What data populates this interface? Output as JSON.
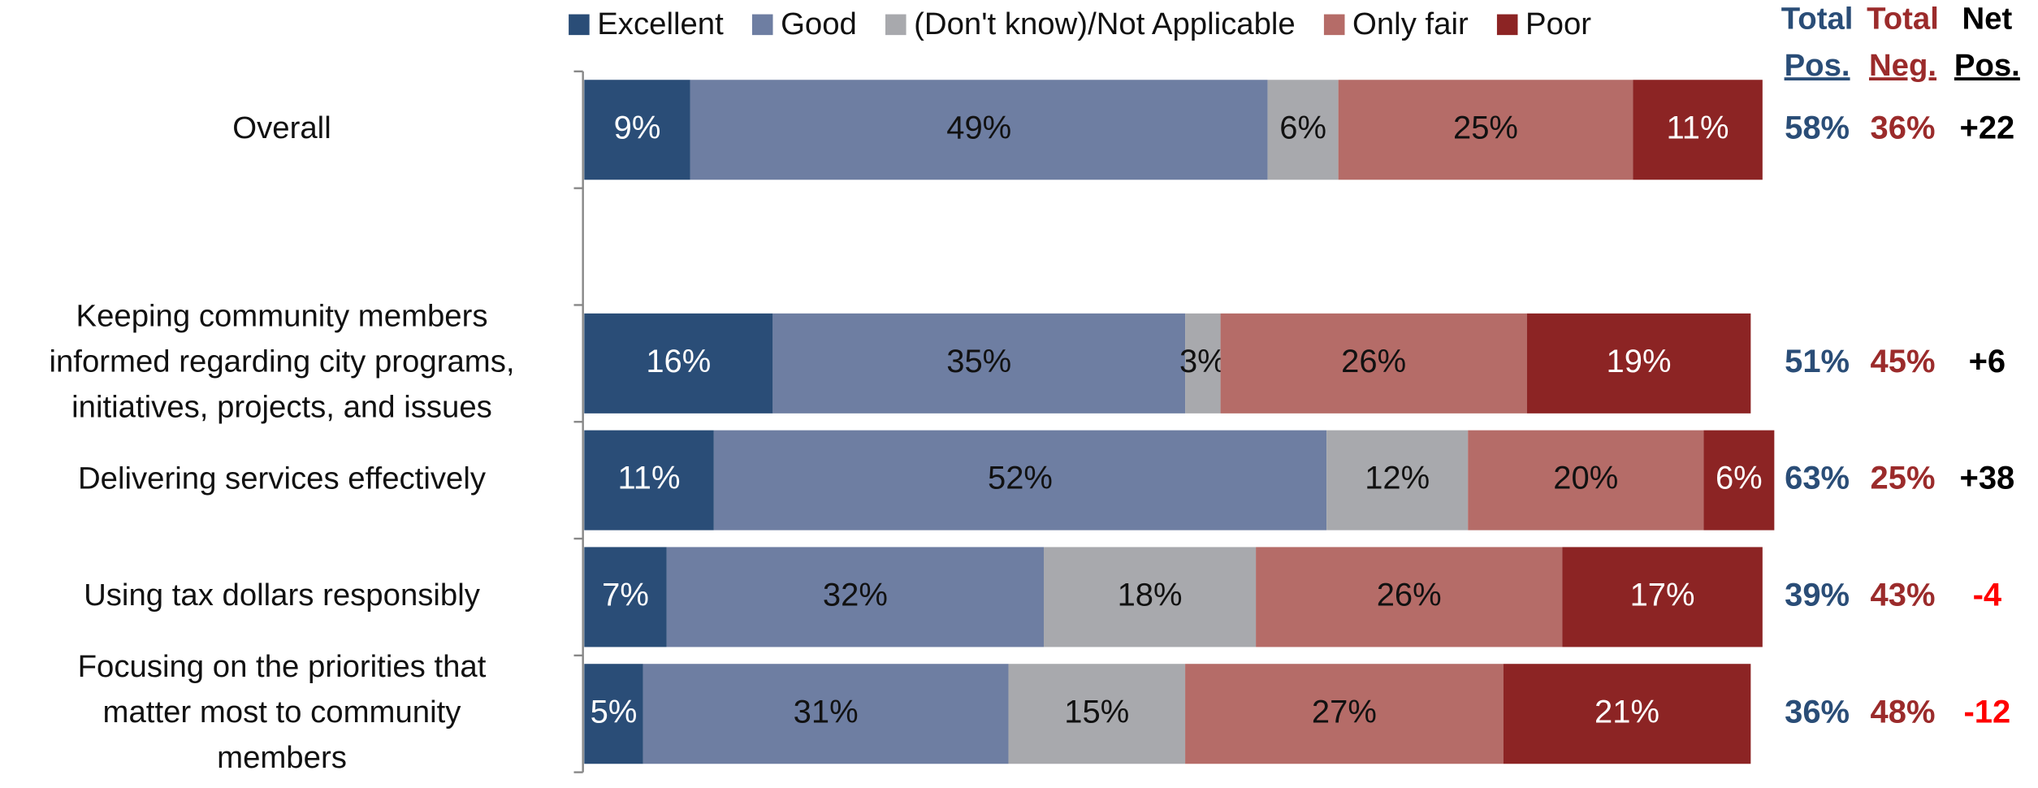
{
  "chart_data": {
    "type": "stacked-bar-horizontal",
    "categories": [
      [
        "Overall"
      ],
      null,
      [
        "Keeping community members",
        "informed regarding city programs,",
        "initiatives, projects, and issues"
      ],
      [
        "Delivering services effectively"
      ],
      [
        "Using tax dollars responsibly"
      ],
      [
        "Focusing on the priorities that",
        "matter most to community",
        "members"
      ]
    ],
    "xlim": [
      0,
      101
    ],
    "legend": "top",
    "series": [
      {
        "name": "Excellent",
        "color": "#2a4d77",
        "label_color": "#ffffff",
        "values": [
          9,
          null,
          16,
          11,
          7,
          5
        ],
        "value_labels": [
          "9%",
          null,
          "16%",
          "11%",
          "7%",
          "5%"
        ]
      },
      {
        "name": "Good",
        "color": "#6e7ea2",
        "label_color": "#111111",
        "values": [
          49,
          null,
          35,
          52,
          32,
          31
        ],
        "value_labels": [
          "49%",
          null,
          "35%",
          "52%",
          "32%",
          "31%"
        ]
      },
      {
        "name": "(Don't know)/Not Applicable",
        "color": "#a8a9ad",
        "label_color": "#111111",
        "values": [
          6,
          null,
          3,
          12,
          18,
          15
        ],
        "value_labels": [
          "6%",
          null,
          "3%",
          "12%",
          "18%",
          "15%"
        ]
      },
      {
        "name": "Only fair",
        "color": "#b56c68",
        "label_color": "#111111",
        "values": [
          25,
          null,
          26,
          20,
          26,
          27
        ],
        "value_labels": [
          "25%",
          null,
          "26%",
          "20%",
          "26%",
          "27%"
        ]
      },
      {
        "name": "Poor",
        "color": "#8c2424",
        "label_color": "#ffffff",
        "values": [
          11,
          null,
          19,
          6,
          17,
          21
        ],
        "value_labels": [
          "11%",
          null,
          "19%",
          "6%",
          "17%",
          "21%"
        ]
      }
    ],
    "columns": [
      {
        "header": [
          "Total",
          "Pos."
        ],
        "color": "#2a4d77",
        "values": [
          58,
          null,
          51,
          63,
          39,
          36
        ],
        "value_labels": [
          "58%",
          null,
          "51%",
          "63%",
          "39%",
          "36%"
        ]
      },
      {
        "header": [
          "Total",
          "Neg."
        ],
        "color": "#9b2b2b",
        "values": [
          36,
          null,
          45,
          25,
          43,
          48
        ],
        "value_labels": [
          "36%",
          null,
          "45%",
          "25%",
          "43%",
          "48%"
        ]
      },
      {
        "header": [
          "Net",
          "Pos."
        ],
        "color": "#000000",
        "negative_color": "#ff0000",
        "values": [
          22,
          null,
          6,
          38,
          -4,
          -12
        ],
        "value_labels": [
          "+22",
          null,
          "+6",
          "+38",
          "-4",
          "-12"
        ]
      }
    ]
  }
}
